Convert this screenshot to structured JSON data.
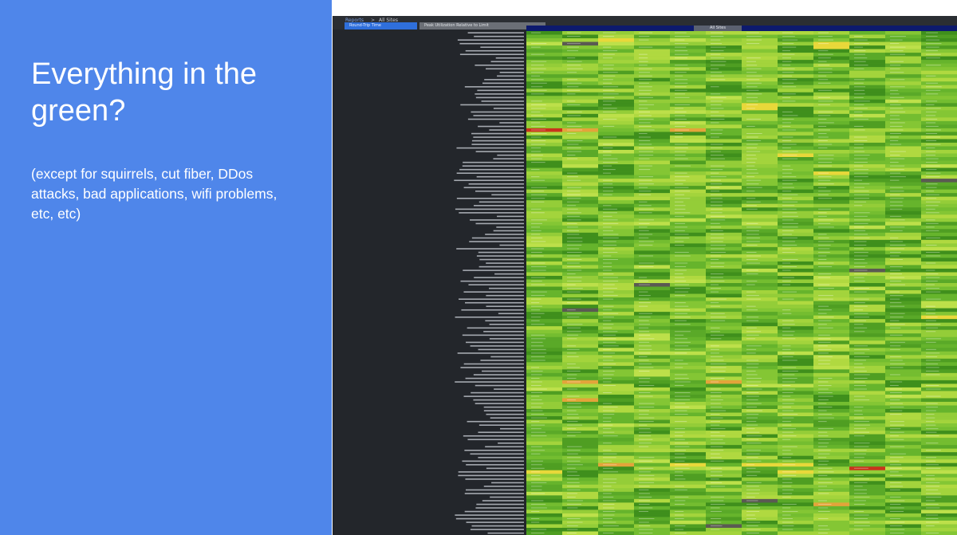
{
  "slide": {
    "title": "Everything in the green?",
    "subtitle": "(except for squirrels, cut fiber, DDos attacks, bad applications, wifi problems, etc, etc)",
    "background": "#4f86ea"
  },
  "screenshot": {
    "breadcrumb": {
      "parent": "Reports",
      "separator": ">",
      "current": "All Sites"
    },
    "tabs": [
      {
        "label": "Round-Trip Time",
        "active": true
      },
      {
        "label": "Peak Utilization Relative to Limit",
        "active": false
      }
    ],
    "column_group_label": "All Sites",
    "colors": {
      "good": "#4f9e22",
      "ok": "#9ccd3a",
      "warning": "#e8d83a",
      "high": "#e3a43a",
      "critical": "#c8331c",
      "no_data": "#5a5a52"
    }
  }
}
